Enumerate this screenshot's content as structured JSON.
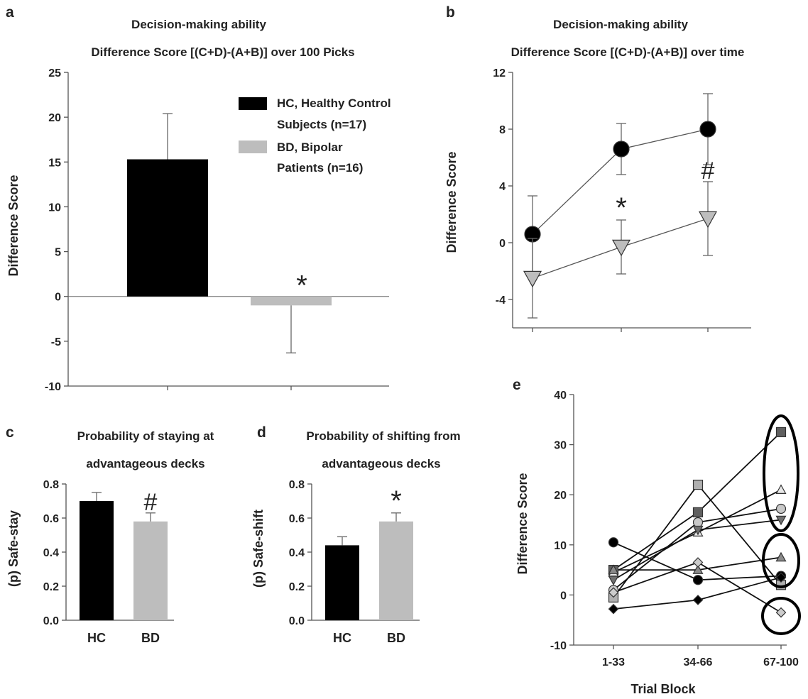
{
  "colors": {
    "hc": "#000000",
    "bd": "#bdbdbd",
    "axis": "#555555"
  },
  "chart_data": [
    {
      "panel": "a",
      "type": "bar",
      "title": "Decision-making ability",
      "subtitle": "Difference Score [(C+D)-(A+B)] over 100 Picks",
      "ylabel": "Difference Score",
      "ylim": [
        -10,
        25
      ],
      "yticks": [
        -10,
        -5,
        0,
        5,
        10,
        15,
        20,
        25
      ],
      "legend": [
        {
          "lines": [
            "HC, Healthy Control",
            "Subjects (n=17)"
          ],
          "color": "#000000"
        },
        {
          "lines": [
            "BD, Bipolar",
            "Patients (n=16)"
          ],
          "color": "#bdbdbd"
        }
      ],
      "bars": [
        {
          "value": 15.3,
          "error": 5.1,
          "color": "#000000"
        },
        {
          "value": -1.0,
          "error": 5.3,
          "color": "#bdbdbd",
          "marker": "*"
        }
      ]
    },
    {
      "panel": "b",
      "type": "line",
      "title": "Decision-making ability",
      "subtitle": "Difference Score [(C+D)-(A+B)] over time",
      "ylabel": "Difference Score",
      "ylim": [
        -6,
        12
      ],
      "yticks": [
        -4,
        0,
        4,
        8,
        12
      ],
      "series": [
        {
          "values": [
            0.6,
            6.6,
            8.0
          ],
          "errors": [
            2.7,
            1.8,
            2.5
          ],
          "marker": "circle"
        },
        {
          "values": [
            -2.5,
            -0.3,
            1.7
          ],
          "errors": [
            2.8,
            1.9,
            2.6
          ],
          "marker": "triangle-down",
          "annotations": [
            "",
            "*",
            "#"
          ]
        }
      ]
    },
    {
      "panel": "c",
      "type": "bar",
      "title": "Probability of staying at",
      "subtitle": "advantageous decks",
      "ylabel": "(p) Safe-stay",
      "ylim": [
        0,
        0.8
      ],
      "yticks": [
        "0.0",
        "0.2",
        "0.4",
        "0.6",
        "0.8"
      ],
      "categories": [
        "HC",
        "BD"
      ],
      "bars": [
        {
          "value": 0.7,
          "error": 0.05,
          "color": "#000000"
        },
        {
          "value": 0.58,
          "error": 0.05,
          "color": "#bdbdbd",
          "marker": "#"
        }
      ]
    },
    {
      "panel": "d",
      "type": "bar",
      "title": "Probability of shifting from",
      "subtitle": "advantageous decks",
      "ylabel": "(p) Safe-shift",
      "ylim": [
        0,
        0.8
      ],
      "yticks": [
        "0.0",
        "0.2",
        "0.4",
        "0.6",
        "0.8"
      ],
      "categories": [
        "HC",
        "BD"
      ],
      "bars": [
        {
          "value": 0.44,
          "error": 0.05,
          "color": "#000000"
        },
        {
          "value": 0.58,
          "error": 0.05,
          "color": "#bdbdbd",
          "marker": "*"
        }
      ]
    },
    {
      "panel": "e",
      "type": "line",
      "xlabel": "Trial Block",
      "ylabel": "Difference Score",
      "categories": [
        "1-33",
        "34-66",
        "67-100"
      ],
      "ylim": [
        -10,
        40
      ],
      "yticks": [
        -10,
        0,
        10,
        20,
        30,
        40
      ],
      "series": [
        {
          "values": [
            5,
            16.5,
            32.5
          ],
          "marker": "square",
          "color": "#606060"
        },
        {
          "values": [
            -0.5,
            22,
            2
          ],
          "marker": "square",
          "color": "#b0b0b0"
        },
        {
          "values": [
            4.5,
            12.5,
            21
          ],
          "marker": "triangle-up",
          "color": "#e8e8e8"
        },
        {
          "values": [
            1,
            14.5,
            17.2
          ],
          "marker": "circle",
          "color": "#c8c8c8"
        },
        {
          "values": [
            3,
            13,
            15
          ],
          "marker": "triangle-down",
          "color": "#707070"
        },
        {
          "values": [
            5,
            5,
            7.5
          ],
          "marker": "triangle-up",
          "color": "#8a8a8a"
        },
        {
          "values": [
            0.5,
            6.5,
            -3.5
          ],
          "marker": "diamond",
          "color": "#cccccc"
        },
        {
          "values": [
            10.5,
            3,
            3.8
          ],
          "marker": "circle",
          "color": "#000000"
        },
        {
          "values": [
            -2.8,
            -1,
            3.5
          ],
          "marker": "diamond",
          "color": "#000000"
        }
      ]
    }
  ],
  "panels": {
    "a": {
      "letter": "a",
      "title_line1": "Decision-making ability",
      "title_line2": "Difference Score [(C+D)-(A+B)] over 100 Picks",
      "ylabel": "Difference Score"
    },
    "b": {
      "letter": "b",
      "title_line1": "Decision-making ability",
      "title_line2": "Difference Score [(C+D)-(A+B)] over time",
      "ylabel": "Difference Score"
    },
    "c": {
      "letter": "c",
      "title_line1": "Probability of staying at",
      "title_line2": "advantageous decks",
      "ylabel": "(p) Safe-stay"
    },
    "d": {
      "letter": "d",
      "title_line1": "Probability of shifting from",
      "title_line2": "advantageous decks",
      "ylabel": "(p) Safe-shift"
    },
    "e": {
      "letter": "e",
      "ylabel": "Difference Score",
      "xlabel": "Trial Block"
    }
  },
  "legend_a": {
    "hc_line1": "HC, Healthy Control",
    "hc_line2": "Subjects (n=17)",
    "bd_line1": "BD, Bipolar",
    "bd_line2": "Patients (n=16)"
  }
}
